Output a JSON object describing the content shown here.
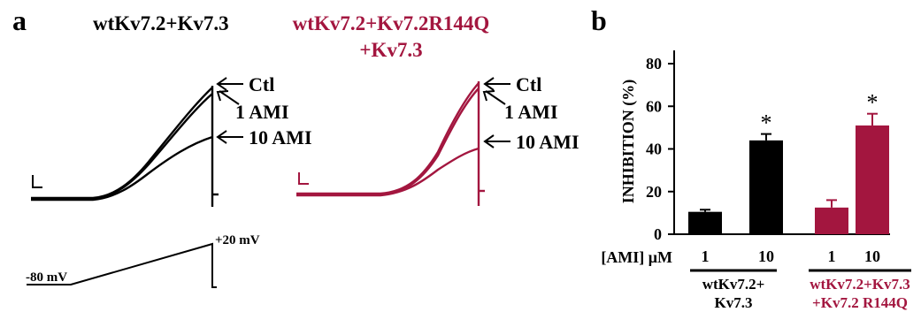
{
  "colors": {
    "wt": "#000000",
    "mutant": "#a3163f"
  },
  "panel_a": {
    "label": "a",
    "title_wt": "wtKv7.2+Kv7.3",
    "title_mut_line1": "wtKv7.2+Kv7.2R144Q",
    "title_mut_line2": "+Kv7.3",
    "trace_labels": [
      "Ctl",
      "1 AMI",
      "10 AMI"
    ],
    "protocol_labels": {
      "holding": "-80 mV",
      "step": "+20 mV"
    }
  },
  "chart_data": {
    "type": "bar",
    "panel_label": "b",
    "ylabel": "INHIBITION (%)",
    "ylim": [
      0,
      80
    ],
    "yticks": [
      0,
      20,
      40,
      60,
      80
    ],
    "concentration_label": "[AMI] μM",
    "categories": [
      "1",
      "10",
      "1",
      "10"
    ],
    "values": [
      10.5,
      44,
      12.5,
      51
    ],
    "errors": [
      1,
      3,
      3.5,
      5.5
    ],
    "significance": [
      "",
      "*",
      "",
      "*"
    ],
    "bar_colors": [
      "#000000",
      "#000000",
      "#a3163f",
      "#a3163f"
    ],
    "groups": [
      {
        "line1": "wtKv7.2+",
        "line2": "Kv7.3",
        "color": "#000000"
      },
      {
        "line1": "wtKv7.2+Kv7.3",
        "line2": "+Kv7.2 R144Q",
        "color": "#a3163f"
      }
    ]
  }
}
